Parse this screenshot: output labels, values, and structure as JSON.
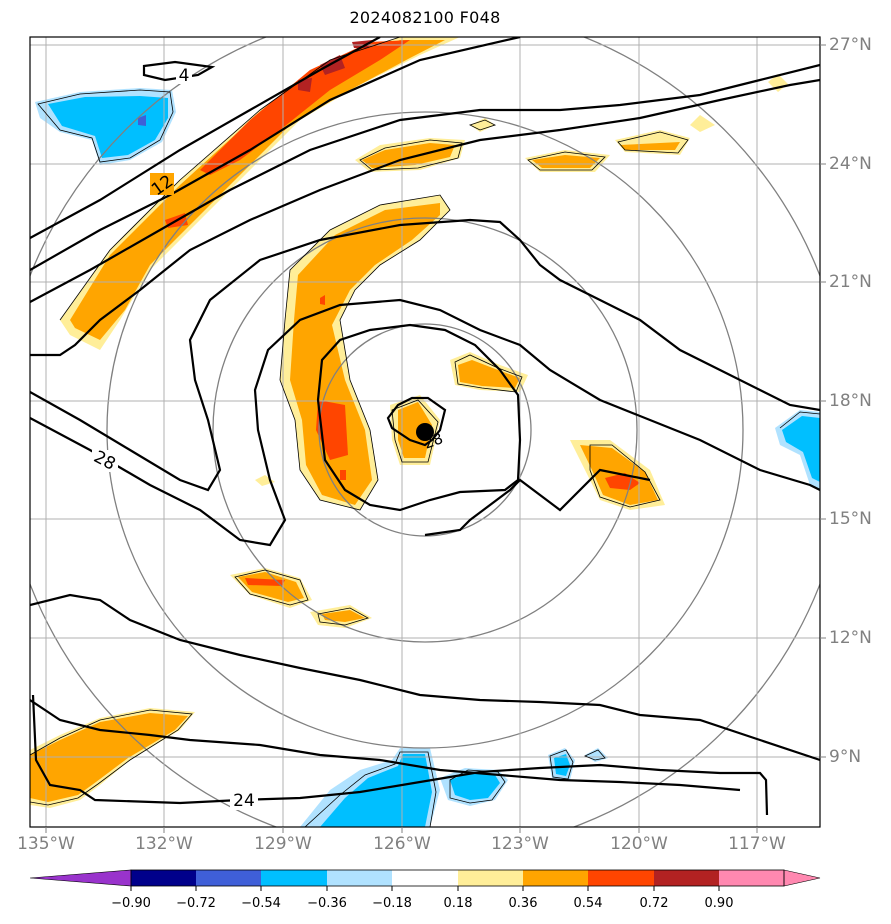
{
  "title": "2024082100 F048",
  "map": {
    "lat_labels": [
      "27°N",
      "24°N",
      "21°N",
      "18°N",
      "15°N",
      "12°N",
      "9°N"
    ],
    "lon_labels": [
      "135°W",
      "132°W",
      "129°W",
      "126°W",
      "123°W",
      "120°W",
      "117°W"
    ],
    "contour_labels": [
      "4",
      "12",
      "28",
      "28",
      "24"
    ],
    "center_marker": "storm-center-icon"
  },
  "colorbar": {
    "labels": [
      "−0.90",
      "−0.72",
      "−0.54",
      "−0.36",
      "−0.18",
      "0.18",
      "0.36",
      "0.54",
      "0.72",
      "0.90"
    ],
    "colors": [
      "#9933cc",
      "#00008b",
      "#3f5fd8",
      "#00bfff",
      "#b0e2ff",
      "#ffffff",
      "#ffee99",
      "#ffa500",
      "#ff4500",
      "#b22222",
      "#ff88b0"
    ]
  }
}
